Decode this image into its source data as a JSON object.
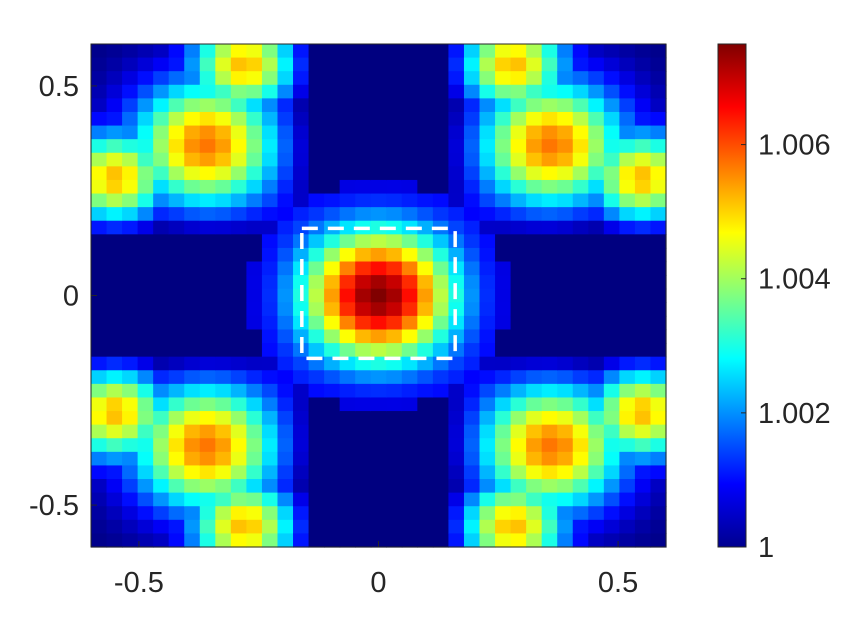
{
  "chart_data": {
    "type": "heatmap",
    "title": "",
    "xlabel": "",
    "ylabel": "",
    "colormap": "jet",
    "xlim": [
      -0.6,
      0.6
    ],
    "ylim": [
      -0.6,
      0.6
    ],
    "clim": [
      1.0,
      1.0075
    ],
    "grid_size": 37,
    "x_ticks": [
      {
        "value": -0.5,
        "label": "-0.5"
      },
      {
        "value": 0,
        "label": "0"
      },
      {
        "value": 0.5,
        "label": "0.5"
      }
    ],
    "y_ticks": [
      {
        "value": 0.5,
        "label": "0.5"
      },
      {
        "value": 0,
        "label": "0"
      },
      {
        "value": -0.5,
        "label": "-0.5"
      }
    ],
    "colorbar_ticks": [
      {
        "value": 1.0,
        "label": "1"
      },
      {
        "value": 1.002,
        "label": "1.002"
      },
      {
        "value": 1.004,
        "label": "1.004"
      },
      {
        "value": 1.006,
        "label": "1.006"
      }
    ],
    "field_model": {
      "description_of_values": "value(x,y) = base + center_peak + corner_lobes; symmetric under x->-x and y->-y",
      "base": 1.0,
      "center_peak": {
        "amplitude": 0.0075,
        "x0": 0,
        "y0": 0,
        "sigma": 0.12
      },
      "corner_lobes": [
        {
          "x0": -0.36,
          "y0": 0.36,
          "amplitude": 0.0057,
          "sigma": 0.11
        },
        {
          "x0": 0.36,
          "y0": 0.36,
          "amplitude": 0.0057,
          "sigma": 0.11
        },
        {
          "x0": -0.36,
          "y0": -0.36,
          "amplitude": 0.0057,
          "sigma": 0.11
        },
        {
          "x0": 0.36,
          "y0": -0.36,
          "amplitude": 0.0057,
          "sigma": 0.11
        }
      ],
      "edge_lobes": [
        {
          "x0": -0.28,
          "y0": 0.55,
          "amplitude": 0.0052,
          "sigma": 0.08
        },
        {
          "x0": 0.28,
          "y0": 0.55,
          "amplitude": 0.0052,
          "sigma": 0.08
        },
        {
          "x0": -0.28,
          "y0": -0.55,
          "amplitude": 0.0052,
          "sigma": 0.08
        },
        {
          "x0": 0.28,
          "y0": -0.55,
          "amplitude": 0.0052,
          "sigma": 0.08
        },
        {
          "x0": -0.55,
          "y0": 0.28,
          "amplitude": 0.0052,
          "sigma": 0.08
        },
        {
          "x0": 0.55,
          "y0": 0.28,
          "amplitude": 0.0052,
          "sigma": 0.08
        },
        {
          "x0": -0.55,
          "y0": -0.28,
          "amplitude": 0.0052,
          "sigma": 0.08
        },
        {
          "x0": 0.55,
          "y0": -0.28,
          "amplitude": 0.0052,
          "sigma": 0.08
        }
      ]
    },
    "annotations": [
      {
        "type": "dashed-rectangle",
        "color": "#ffffff",
        "x_range": [
          -0.16,
          0.16
        ],
        "y_range": [
          -0.15,
          0.16
        ]
      }
    ]
  }
}
